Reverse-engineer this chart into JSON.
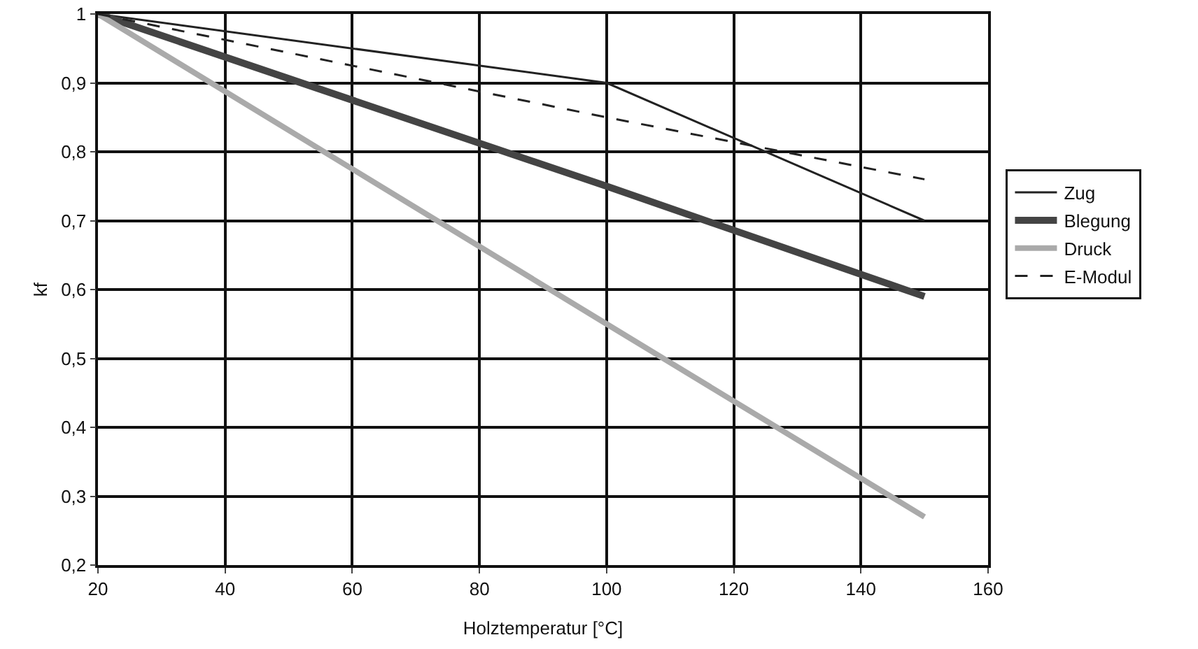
{
  "chart_data": {
    "type": "line",
    "xlabel": "Holztemperatur [°C]",
    "ylabel": "kf",
    "x": [
      20,
      100,
      150
    ],
    "xlim": [
      20,
      160
    ],
    "xticks": [
      20,
      40,
      60,
      80,
      100,
      120,
      140,
      160
    ],
    "ylim": [
      0.2,
      1
    ],
    "yticks": [
      {
        "value": 0.2,
        "label": "0,2"
      },
      {
        "value": 0.3,
        "label": "0,3"
      },
      {
        "value": 0.4,
        "label": "0,4"
      },
      {
        "value": 0.5,
        "label": "0,5"
      },
      {
        "value": 0.6,
        "label": "0,6"
      },
      {
        "value": 0.7,
        "label": "0,7"
      },
      {
        "value": 0.8,
        "label": "0,8"
      },
      {
        "value": 0.9,
        "label": "0,9"
      },
      {
        "value": 1,
        "label": "1"
      }
    ],
    "grid": true,
    "legend": "right",
    "marker": "none",
    "series": [
      {
        "name": "Zug",
        "color": "#222222",
        "values": [
          1,
          0.9,
          0.7
        ],
        "line_style": "solid"
      },
      {
        "name": "Blegung",
        "color": "#444444",
        "values": [
          1,
          0.75,
          0.59
        ],
        "line_style": "solid"
      },
      {
        "name": "Druck",
        "color": "#aaaaaa",
        "values": [
          1,
          0.55,
          0.27
        ],
        "line_style": "solid"
      },
      {
        "name": "E-Modul",
        "color": "#222222",
        "values": [
          1,
          0.85,
          0.76
        ],
        "line_style": "dashed"
      }
    ]
  }
}
